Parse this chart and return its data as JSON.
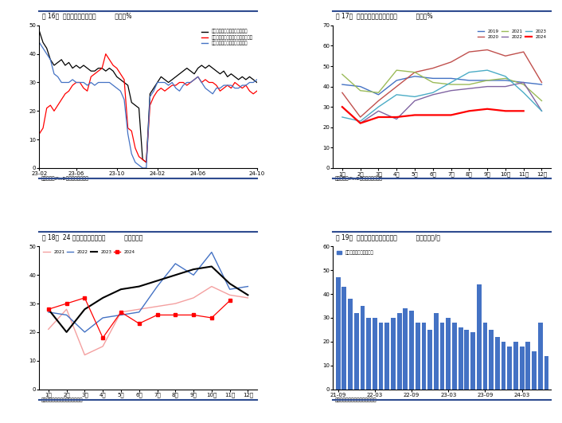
{
  "fig16": {
    "title": "图 16：   不同市场需求开工率",
    "unit": "单位：%",
    "source": "数据来源：iFinD、海通期货研究所",
    "xticks": [
      "23-02",
      "23-06",
      "23-10",
      "24-02",
      "24-06",
      "24-10"
    ],
    "ylim": [
      0,
      50
    ],
    "yticks": [
      0,
      10,
      20,
      30,
      40,
      50
    ],
    "black_data": [
      48,
      44,
      42,
      38,
      36,
      37,
      38,
      36,
      37,
      35,
      36,
      35,
      36,
      35,
      34,
      34,
      35,
      35,
      34,
      35,
      34,
      32,
      31,
      30,
      29,
      23,
      22,
      21,
      3,
      2,
      26,
      28,
      30,
      32,
      31,
      30,
      31,
      32,
      33,
      34,
      35,
      34,
      33,
      35,
      36,
      35,
      36,
      35,
      34,
      33,
      34,
      32,
      33,
      32,
      31,
      32,
      31,
      32,
      31,
      30
    ],
    "red_data": [
      12,
      14,
      21,
      22,
      20,
      22,
      24,
      26,
      27,
      29,
      30,
      30,
      28,
      27,
      32,
      33,
      34,
      35,
      40,
      38,
      36,
      35,
      33,
      31,
      14,
      13,
      7,
      4,
      3,
      2,
      22,
      25,
      27,
      28,
      27,
      28,
      29,
      29,
      30,
      30,
      29,
      30,
      31,
      32,
      30,
      31,
      30,
      30,
      29,
      27,
      28,
      29,
      28,
      30,
      29,
      28,
      29,
      27,
      26,
      27
    ],
    "blue_data": [
      44,
      42,
      40,
      38,
      33,
      32,
      30,
      30,
      30,
      31,
      30,
      30,
      30,
      29,
      30,
      29,
      30,
      30,
      30,
      30,
      29,
      28,
      27,
      24,
      12,
      5,
      2,
      1,
      0,
      0,
      25,
      27,
      30,
      30,
      30,
      29,
      30,
      28,
      27,
      29,
      30,
      30,
      31,
      32,
      30,
      28,
      27,
      26,
      28,
      28,
      29,
      29,
      29,
      28,
      28,
      29,
      29,
      30,
      30,
      31
    ]
  },
  "fig17": {
    "title": "图 17：   中国石油沥青装置开工率",
    "unit": "单位：%",
    "source": "数据来源：iFinD、海通期货研究所",
    "xticks": [
      "1月",
      "2月",
      "3月",
      "4月",
      "5月",
      "6月",
      "7月",
      "8月",
      "9月",
      "10月",
      "11月",
      "12月"
    ],
    "ylim": [
      0,
      70
    ],
    "yticks": [
      0,
      10,
      20,
      30,
      40,
      50,
      60,
      70
    ],
    "colors": {
      "2019": "#4472C4",
      "2020": "#C0504D",
      "2021": "#9BBB59",
      "2022": "#8064A2",
      "2023": "#4BACC6",
      "2024": "#FF0000"
    },
    "data_2019": [
      41,
      40,
      36,
      43,
      45,
      44,
      44,
      43,
      43,
      43,
      42,
      41
    ],
    "data_2020": [
      37,
      25,
      33,
      40,
      47,
      49,
      52,
      57,
      58,
      55,
      57,
      42
    ],
    "data_2021": [
      46,
      38,
      37,
      48,
      47,
      42,
      41,
      41,
      43,
      44,
      41,
      33
    ],
    "data_2022": [
      30,
      22,
      28,
      24,
      33,
      36,
      38,
      39,
      40,
      40,
      42,
      28
    ],
    "data_2023": [
      25,
      23,
      30,
      36,
      35,
      37,
      42,
      47,
      48,
      45,
      37,
      28
    ],
    "data_2024": [
      30,
      22,
      25,
      25,
      26,
      26,
      26,
      28,
      29,
      28,
      28,
      null
    ]
  },
  "fig18": {
    "title": "图 18：   24 家样本企业沥青销量",
    "unit": "单位：万吨",
    "source": "数据来源：钢联、海通期货研究所",
    "xticks": [
      "1月",
      "2月",
      "3月",
      "4月",
      "5月",
      "6月",
      "7月",
      "8月",
      "9月",
      "10月",
      "11月",
      "12月"
    ],
    "ylim": [
      0,
      50
    ],
    "yticks": [
      0,
      10,
      20,
      30,
      40,
      50
    ],
    "colors": {
      "2021": "#F4A0A0",
      "2022": "#4472C4",
      "2023": "#000000",
      "2024": "#FF0000"
    },
    "data_2021": [
      21,
      28,
      12,
      15,
      27,
      28,
      29,
      30,
      32,
      36,
      33,
      32
    ],
    "data_2022": [
      27,
      26,
      20,
      25,
      26,
      27,
      36,
      44,
      40,
      48,
      35,
      36
    ],
    "data_2023": [
      28,
      20,
      28,
      32,
      35,
      36,
      38,
      40,
      42,
      43,
      37,
      33
    ],
    "data_2024": [
      28,
      30,
      32,
      18,
      27,
      23,
      26,
      26,
      26,
      25,
      31,
      null
    ]
  },
  "fig19": {
    "title": "图 19：   委内瑞拉原油出口至中国",
    "unit": "单位：万桶/天",
    "source": "数据来源：彭博、海通期货研究所",
    "xticks": [
      "21-09",
      "22-03",
      "22-09",
      "23-03",
      "23-09",
      "24-03"
    ],
    "tick_positions": [
      0,
      6,
      12,
      18,
      24,
      30
    ],
    "ylim": [
      0,
      60
    ],
    "yticks": [
      0,
      10,
      20,
      30,
      40,
      50,
      60
    ],
    "bar_color": "#4472C4",
    "legend_label": "委内瑞拉原油出口至中国",
    "bar_data": [
      47,
      43,
      38,
      32,
      35,
      30,
      30,
      28,
      28,
      30,
      32,
      34,
      33,
      28,
      28,
      25,
      32,
      28,
      30,
      28,
      26,
      25,
      24,
      44,
      28,
      25,
      22,
      20,
      18,
      20,
      18,
      20,
      16,
      28,
      14
    ]
  },
  "bg_color": "#FFFFFF",
  "title_bar_color": "#2E4B8F",
  "divider_color": "#2E4B8F",
  "source_bg_color": "#D9E1F2"
}
